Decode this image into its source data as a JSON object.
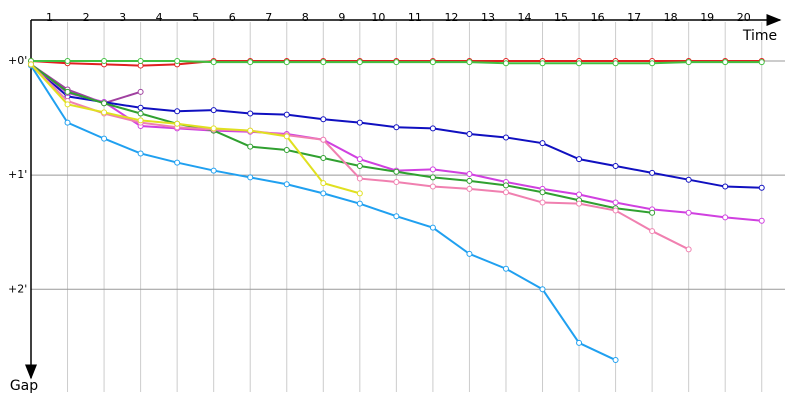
{
  "chart_data": {
    "type": "line",
    "x_label": "Time",
    "y_label": "Gap",
    "x": [
      0,
      1,
      2,
      3,
      4,
      5,
      6,
      7,
      8,
      9,
      10,
      11,
      12,
      13,
      14,
      15,
      16,
      17,
      18,
      19,
      20
    ],
    "xlim": [
      0,
      20.5
    ],
    "xticks": [
      1,
      2,
      3,
      4,
      5,
      6,
      7,
      8,
      9,
      10,
      11,
      12,
      13,
      14,
      15,
      16,
      17,
      18,
      19,
      20
    ],
    "ylim": [
      0,
      2.9
    ],
    "yticks": [
      {
        "value": 0,
        "label": "+0'"
      },
      {
        "value": 1,
        "label": "+1'"
      },
      {
        "value": 2,
        "label": "+2'"
      }
    ],
    "grid": true,
    "invert_y": true,
    "series": [
      {
        "color": "#e02020",
        "values": [
          0,
          0.02,
          0.03,
          0.04,
          0.03,
          0,
          0,
          0,
          0,
          0,
          0,
          0,
          0,
          0,
          0,
          0,
          0,
          0,
          0,
          0,
          0
        ]
      },
      {
        "color": "#40c040",
        "values": [
          0,
          0,
          0,
          0,
          0,
          0.01,
          0.01,
          0.01,
          0.01,
          0.01,
          0.01,
          0.01,
          0.01,
          0.02,
          0.02,
          0.02,
          0.02,
          0.02,
          0.01,
          0.01,
          0.01
        ]
      },
      {
        "color": "#a040a0",
        "values": [
          0.03,
          0.25,
          0.37,
          0.27,
          null,
          null,
          null,
          null,
          null,
          null,
          null,
          null,
          null,
          null,
          null,
          null,
          null,
          null,
          null,
          null,
          null
        ]
      },
      {
        "color": "#1010c0",
        "values": [
          0.03,
          0.31,
          0.36,
          0.41,
          0.44,
          0.43,
          0.46,
          0.47,
          0.51,
          0.54,
          0.58,
          0.59,
          0.64,
          0.67,
          0.72,
          0.86,
          0.92,
          0.98,
          1.04,
          1.1,
          1.11
        ]
      },
      {
        "color": "#20a0f0",
        "values": [
          0.04,
          0.54,
          0.68,
          0.81,
          0.89,
          0.96,
          1.02,
          1.08,
          1.16,
          1.25,
          1.36,
          1.46,
          1.69,
          1.82,
          2.0,
          2.47,
          2.62,
          null,
          null,
          null,
          null
        ]
      },
      {
        "color": "#d040e0",
        "values": [
          0.03,
          0.28,
          0.36,
          0.57,
          0.59,
          0.61,
          0.62,
          0.64,
          0.69,
          0.86,
          0.96,
          0.95,
          0.99,
          1.06,
          1.12,
          1.17,
          1.24,
          1.3,
          1.33,
          1.37,
          1.4
        ]
      },
      {
        "color": "#30a030",
        "values": [
          0.03,
          0.27,
          0.37,
          0.46,
          0.55,
          0.61,
          0.75,
          0.78,
          0.85,
          0.92,
          0.97,
          1.02,
          1.05,
          1.09,
          1.15,
          1.22,
          1.29,
          1.33,
          null,
          null,
          null
        ]
      },
      {
        "color": "#f080b0",
        "values": [
          0.03,
          0.35,
          0.46,
          0.54,
          0.58,
          0.6,
          0.61,
          0.65,
          0.69,
          1.03,
          1.06,
          1.1,
          1.12,
          1.15,
          1.24,
          1.25,
          1.31,
          1.49,
          1.65,
          null,
          null
        ]
      },
      {
        "color": "#e0e020",
        "values": [
          0.03,
          0.38,
          0.45,
          0.52,
          0.55,
          0.59,
          0.61,
          0.66,
          1.07,
          1.16,
          null,
          null,
          null,
          null,
          null,
          null,
          null,
          null,
          null,
          null,
          null
        ]
      }
    ]
  }
}
